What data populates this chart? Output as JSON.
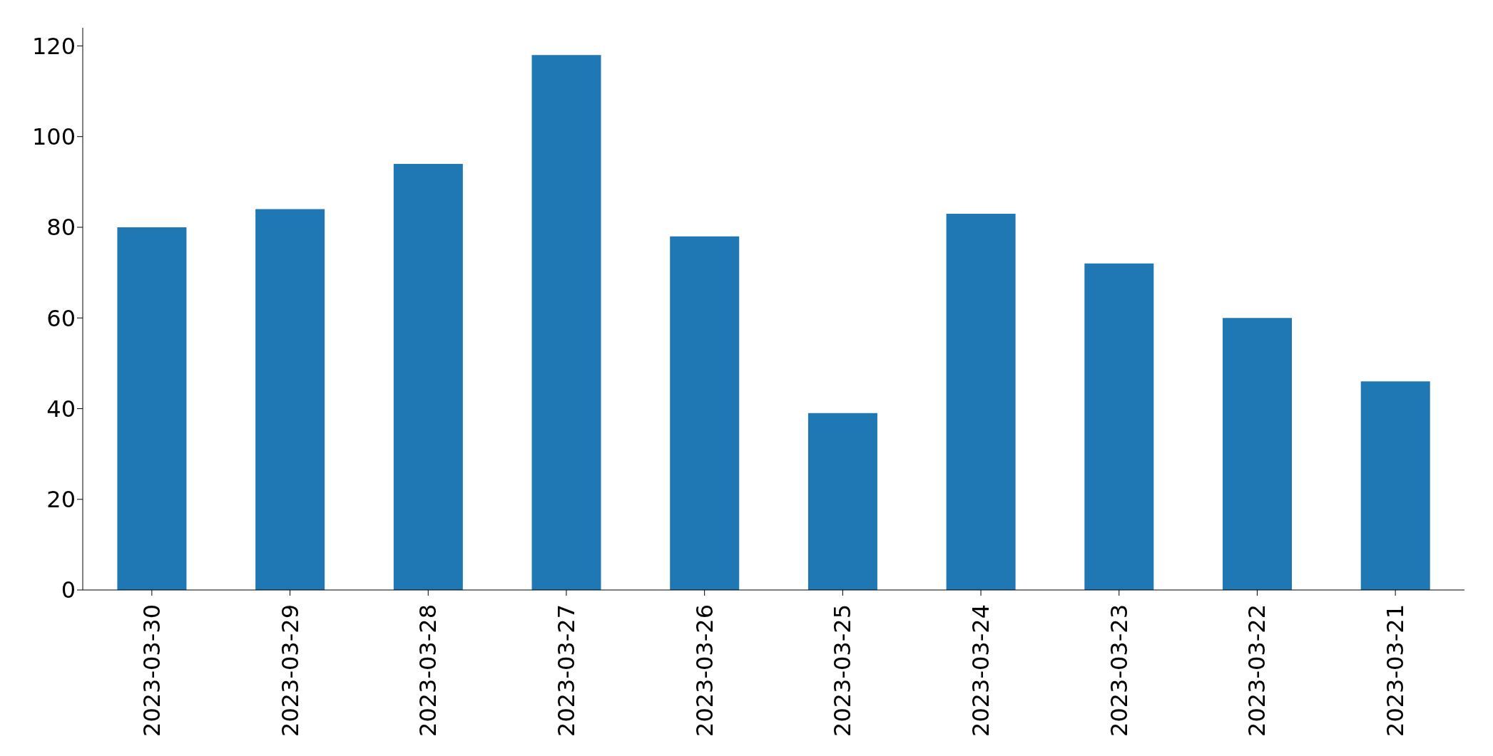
{
  "chart_data": {
    "type": "bar",
    "categories": [
      "2023-03-30",
      "2023-03-29",
      "2023-03-28",
      "2023-03-27",
      "2023-03-26",
      "2023-03-25",
      "2023-03-24",
      "2023-03-23",
      "2023-03-22",
      "2023-03-21"
    ],
    "values": [
      80,
      84,
      94,
      118,
      78,
      39,
      83,
      72,
      60,
      46
    ],
    "color": "#1f77b4",
    "ylim": [
      0,
      124
    ],
    "yticks": [
      0,
      20,
      40,
      60,
      80,
      100,
      120
    ],
    "grid": false,
    "legend": false
  }
}
